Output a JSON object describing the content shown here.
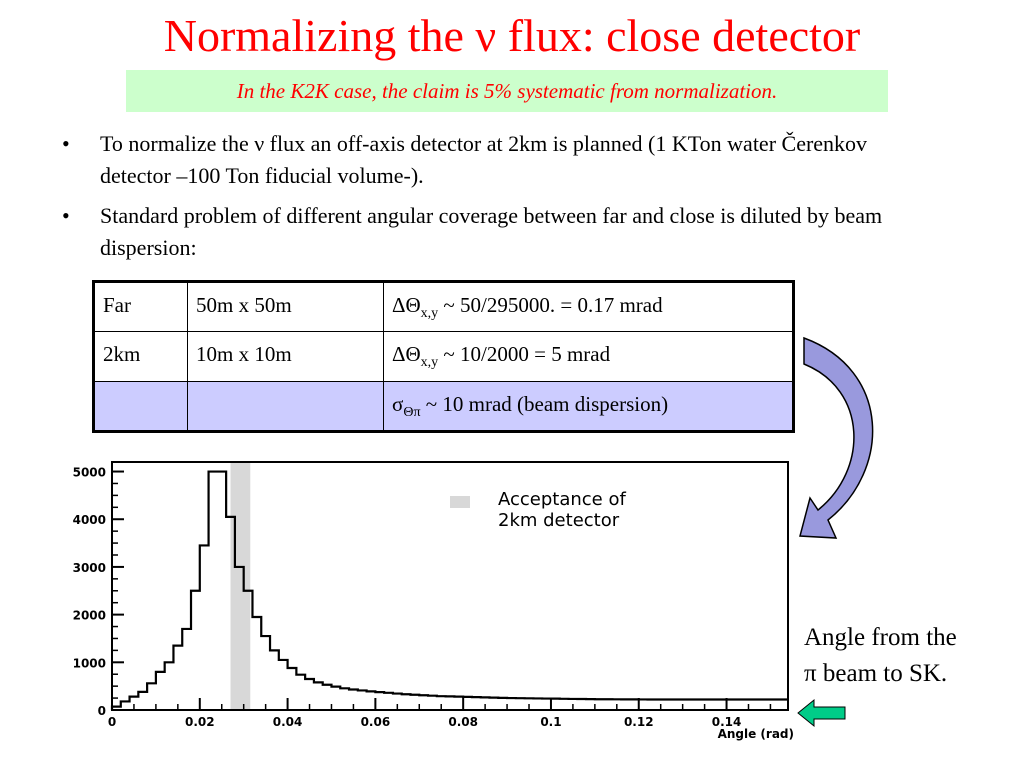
{
  "title": "Normalizing the ν flux: close detector",
  "subtitle": "In the K2K case, the claim is 5% systematic from normalization.",
  "bullets": [
    "To normalize the ν flux an off-axis detector at 2km is planned (1 KTon water Čerenkov detector –100 Ton fiducial volume-).",
    "Standard problem of different angular coverage  between far and close is diluted by beam dispersion:"
  ],
  "bullet_symbol": "•",
  "table": {
    "rows": [
      {
        "c1": "Far",
        "c2": "50m x 50m",
        "c3_pre": "ΔΘ",
        "c3_sub": "x,y",
        "c3_post": " ~ 50/295000. = 0.17 mrad"
      },
      {
        "c1": "2km",
        "c2": "10m x 10m",
        "c3_pre": "ΔΘ",
        "c3_sub": "x,y",
        "c3_post": " ~ 10/2000 = 5 mrad"
      },
      {
        "c1": "",
        "c2": "",
        "c3_pre": "σ",
        "c3_sub": "Θπ",
        "c3_post": " ~ 10 mrad (beam dispersion)"
      }
    ],
    "highlight_color": "#ccccff"
  },
  "caption": {
    "line1": "Angle from the",
    "line2": "π beam to SK."
  },
  "chart_data": {
    "type": "histogram",
    "xlabel": "Angle (rad)",
    "xlim": [
      0,
      0.154
    ],
    "ylim": [
      0,
      5200
    ],
    "xticks": [
      0,
      0.02,
      0.04,
      0.06,
      0.08,
      0.1,
      0.12,
      0.14
    ],
    "xtick_labels": [
      "0",
      "0.02",
      "0.04",
      "0.06",
      "0.08",
      "0.1",
      "0.12",
      "0.14"
    ],
    "yticks": [
      0,
      1000,
      2000,
      3000,
      4000,
      5000
    ],
    "ytick_labels": [
      "0",
      "1000",
      "2000",
      "3000",
      "4000",
      "5000"
    ],
    "bin_width": 0.002,
    "values": [
      70,
      180,
      280,
      380,
      560,
      800,
      1000,
      1350,
      1700,
      2500,
      3450,
      5000,
      5000,
      4050,
      3000,
      2500,
      1950,
      1550,
      1250,
      1050,
      880,
      740,
      650,
      580,
      530,
      490,
      455,
      430,
      410,
      390,
      375,
      360,
      345,
      330,
      320,
      310,
      300,
      290,
      285,
      280,
      275,
      270,
      265,
      260,
      255,
      250,
      248,
      245,
      242,
      240,
      238,
      235,
      232,
      230,
      228,
      226,
      225,
      224,
      223,
      222,
      221,
      220,
      220,
      220,
      220,
      220,
      220,
      220,
      220,
      220,
      220,
      220,
      220,
      220,
      220,
      220,
      220
    ],
    "acceptance_band": [
      0.027,
      0.0315
    ],
    "legend_label": "Acceptance of 2km detector",
    "legend_line1": "Acceptance of",
    "legend_line2": "2km detector",
    "colors": {
      "band": "#d8d8d8",
      "line": "#000000"
    }
  },
  "colors": {
    "title": "#ff0000",
    "subtitle_bg": "#ccffcc",
    "arrow_fill": "#9999dd",
    "arrow_left_fill": "#00cc88"
  }
}
